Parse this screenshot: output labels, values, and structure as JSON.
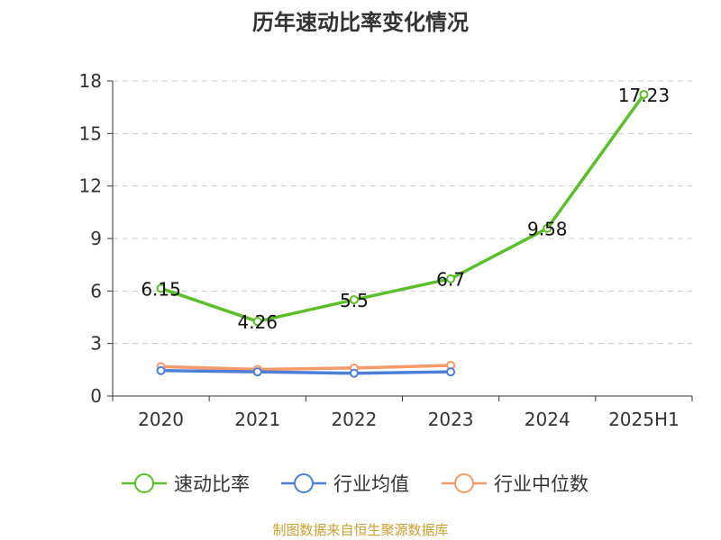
{
  "source_note": "制图数据来自恒生聚源数据库",
  "colors": {
    "speed_ratio": "#5cbe2a",
    "industry_avg": "#4e7fd8",
    "industry_median": "#f59a6a",
    "grid": "#cccccc",
    "axis": "#333333",
    "source": "#c8a032"
  },
  "chart_data": {
    "type": "line",
    "title": "历年速动比率变化情况",
    "categories": [
      "2020",
      "2021",
      "2022",
      "2023",
      "2024",
      "2025H1"
    ],
    "ylim": [
      0,
      18
    ],
    "yticks": [
      0,
      3,
      6,
      9,
      12,
      15,
      18
    ],
    "grid": true,
    "legend_position": "bottom",
    "series": [
      {
        "name": "速动比率",
        "values": [
          6.15,
          4.26,
          5.5,
          6.7,
          9.58,
          17.23
        ],
        "labels": [
          "6.15",
          "4.26",
          "5.5",
          "6.7",
          "9.58",
          "17.23"
        ],
        "color": "#5cbe2a"
      },
      {
        "name": "行业均值",
        "values": [
          1.45,
          1.38,
          1.3,
          1.38,
          null,
          null
        ],
        "color": "#4e7fd8"
      },
      {
        "name": "行业中位数",
        "values": [
          1.68,
          1.52,
          1.6,
          1.75,
          null,
          null
        ],
        "color": "#f59a6a"
      }
    ]
  }
}
